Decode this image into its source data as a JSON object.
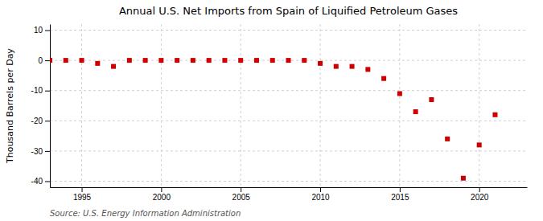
{
  "chart_data": {
    "type": "scatter",
    "title": "Annual U.S. Net Imports from Spain of Liquified Petroleum Gases",
    "ylabel": "Thousand Barrels per Day",
    "annotations": [
      "Source: U.S. Energy Information Administration"
    ],
    "color": "#cc0000",
    "marker": "square",
    "grid": true,
    "xlim": [
      1993,
      2023
    ],
    "ylim": [
      -42,
      12
    ],
    "xticks": [
      1995,
      2000,
      2005,
      2010,
      2015,
      2020
    ],
    "yticks": [
      10,
      0,
      -10,
      -20,
      -30,
      -40
    ],
    "x": [
      1993,
      1994,
      1995,
      1996,
      1997,
      1998,
      1999,
      2000,
      2001,
      2002,
      2003,
      2004,
      2005,
      2006,
      2007,
      2008,
      2009,
      2010,
      2011,
      2012,
      2013,
      2014,
      2015,
      2016,
      2017,
      2018,
      2019,
      2020,
      2021
    ],
    "values": [
      0,
      0,
      0,
      -1,
      -2,
      0,
      0,
      0,
      0,
      0,
      0,
      0,
      0,
      0,
      0,
      0,
      0,
      -1,
      -2,
      -2,
      -3,
      -6,
      -11,
      -17,
      -13,
      -26,
      -39,
      -28,
      -18
    ]
  }
}
